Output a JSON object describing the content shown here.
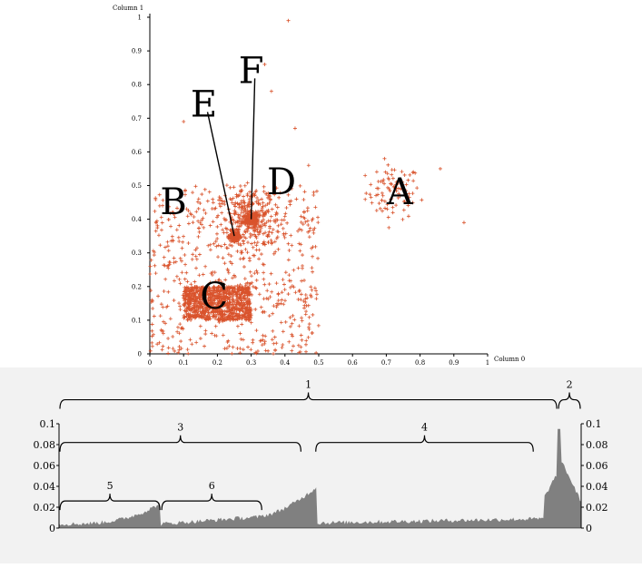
{
  "chart_data": [
    {
      "type": "scatter",
      "xlabel": "Column 0",
      "ylabel": "Column 1",
      "xlim": [
        0,
        1
      ],
      "ylim": [
        0,
        1
      ],
      "xticks": [
        "0",
        "0.1",
        "0.2",
        "0.3",
        "0.4",
        "0.5",
        "0.6",
        "0.7",
        "0.8",
        "0.9",
        "1"
      ],
      "yticks": [
        "0",
        "0.1",
        "0.2",
        "0.3",
        "0.4",
        "0.5",
        "0.6",
        "0.7",
        "0.8",
        "0.9",
        "1"
      ],
      "grid": false,
      "marker": "+",
      "point_color": "#d9532c",
      "clusters": [
        {
          "label": "A",
          "kind": "gaussian",
          "center": [
            0.72,
            0.48
          ],
          "spread": [
            0.04,
            0.04
          ],
          "count": 90
        },
        {
          "label": "B",
          "kind": "uniform",
          "xrange": [
            0.0,
            0.5
          ],
          "yrange": [
            0.0,
            0.5
          ],
          "count": 600
        },
        {
          "label": "C",
          "kind": "uniform",
          "xrange": [
            0.1,
            0.3
          ],
          "yrange": [
            0.1,
            0.2
          ],
          "count": 900
        },
        {
          "label": "D",
          "kind": "gaussian",
          "center": [
            0.3,
            0.4
          ],
          "spread": [
            0.045,
            0.045
          ],
          "count": 300
        },
        {
          "label": "E",
          "kind": "gaussian",
          "center": [
            0.25,
            0.35
          ],
          "spread": [
            0.007,
            0.007
          ],
          "count": 250
        },
        {
          "label": "F",
          "kind": "gaussian",
          "center": [
            0.3,
            0.4
          ],
          "spread": [
            0.007,
            0.007
          ],
          "count": 250
        },
        {
          "label": "",
          "kind": "points",
          "points": [
            [
              0.41,
              0.99
            ],
            [
              0.34,
              0.86
            ],
            [
              0.36,
              0.78
            ],
            [
              0.1,
              0.69
            ],
            [
              0.43,
              0.67
            ],
            [
              0.47,
              0.56
            ],
            [
              0.93,
              0.39
            ],
            [
              0.86,
              0.55
            ]
          ]
        }
      ],
      "annotations": [
        {
          "text": "A",
          "x": 0.74,
          "y": 0.48
        },
        {
          "text": "B",
          "x": 0.07,
          "y": 0.45
        },
        {
          "text": "C",
          "x": 0.19,
          "y": 0.17
        },
        {
          "text": "D",
          "x": 0.39,
          "y": 0.51
        },
        {
          "text": "E",
          "x": 0.16,
          "y": 0.74,
          "target": [
            0.25,
            0.35
          ]
        },
        {
          "text": "F",
          "x": 0.3,
          "y": 0.84,
          "target": [
            0.3,
            0.4
          ]
        }
      ]
    },
    {
      "type": "area",
      "ylim": [
        0,
        0.1
      ],
      "yticks": [
        "0",
        "0.02",
        "0.04",
        "0.06",
        "0.08",
        "0.1"
      ],
      "fill": "#808080",
      "samples": 400,
      "xlim": [
        0,
        1
      ],
      "brackets": [
        {
          "label": "1",
          "range": [
            0.0,
            0.955
          ],
          "level": 0.123
        },
        {
          "label": "2",
          "range": [
            0.955,
            1.0
          ],
          "level": 0.123
        },
        {
          "label": "3",
          "range": [
            0.0,
            0.465
          ],
          "level": 0.082
        },
        {
          "label": "4",
          "range": [
            0.49,
            0.91
          ],
          "level": 0.082
        },
        {
          "label": "5",
          "range": [
            0.0,
            0.195
          ],
          "level": 0.026
        },
        {
          "label": "6",
          "range": [
            0.195,
            0.39
          ],
          "level": 0.026
        }
      ]
    }
  ]
}
